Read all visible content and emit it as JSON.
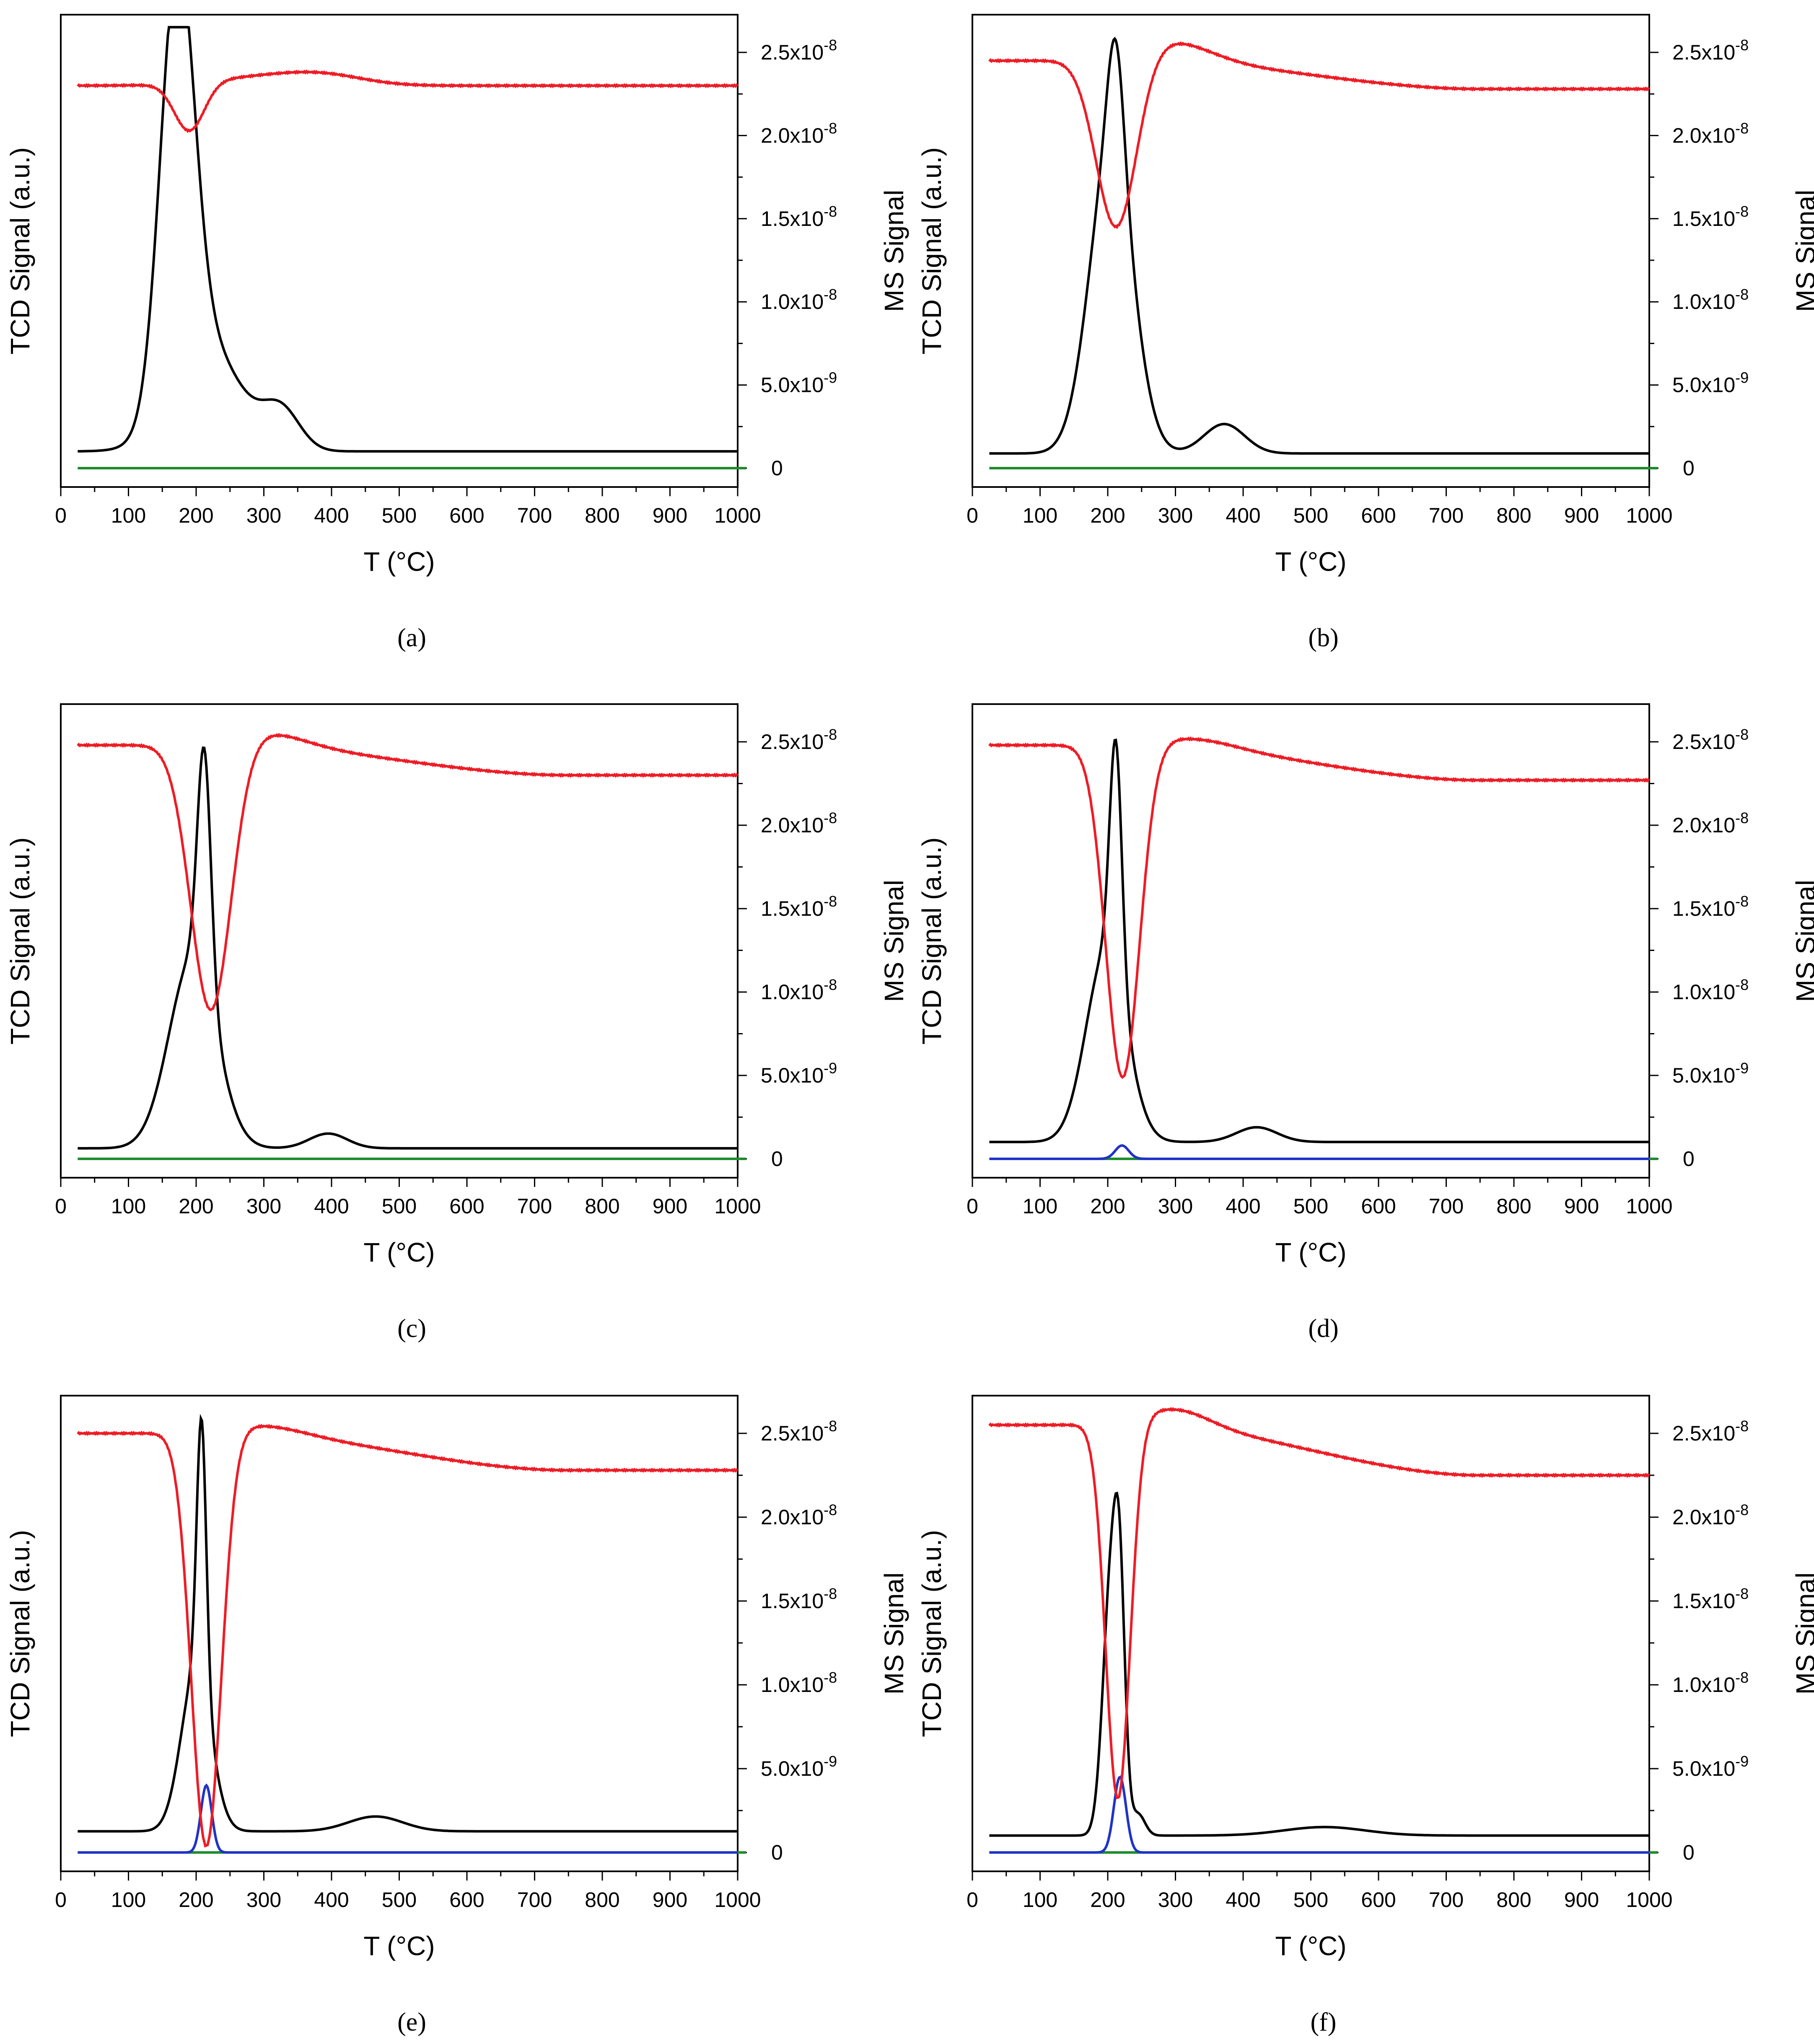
{
  "figure": {
    "description_free": true,
    "panel_labels": [
      "a",
      "b",
      "c",
      "d",
      "e",
      "f"
    ]
  },
  "colors": {
    "tcd": "#000000",
    "ms_red": "#ee1c25",
    "ms_blue": "#1f33c8",
    "ms_green": "#1e8c2e",
    "axis": "#000000"
  },
  "chart_data": [
    {
      "panel": "a",
      "caption": "(a)",
      "type": "line",
      "xlabel": "T (°C)",
      "ylabel_left": "TCD Signal (a.u.)",
      "ylabel_right": "MS Signal",
      "xlim": [
        0,
        1000
      ],
      "x_ticks": [
        0,
        100,
        200,
        300,
        400,
        500,
        600,
        700,
        800,
        900,
        1000
      ],
      "y_right_ticks": [
        "0",
        "5.0x10-9",
        "1.0x10-8",
        "1.5x10-8",
        "2.0x10-8",
        "2.5x10-8"
      ],
      "tcd_peaks": [
        [
          172,
          1.0,
          25
        ],
        [
          215,
          0.25,
          50
        ],
        [
          325,
          0.095,
          28
        ]
      ],
      "tcd_baseline": 0.04,
      "red": {
        "start": 2.3e-08,
        "end": 2.3e-08,
        "dips": [
          [
            190,
            2.9e-09,
            22
          ]
        ],
        "plateau": [
          [
            300,
            5e-10,
            80
          ],
          [
            390,
            5e-10,
            60
          ]
        ]
      },
      "blue_peak": null
    },
    {
      "panel": "b",
      "caption": "(b)",
      "type": "line",
      "xlabel": "T (°C)",
      "ylabel_left": "TCD Signal (a.u.)",
      "ylabel_right": "MS Signal",
      "xlim": [
        0,
        1000
      ],
      "x_ticks": [
        0,
        100,
        200,
        300,
        400,
        500,
        600,
        700,
        800,
        900,
        1000
      ],
      "y_right_ticks": [
        "0",
        "5.0x10-9",
        "1.0x10-8",
        "1.5x10-8",
        "2.0x10-8",
        "2.5x10-8"
      ],
      "tcd_peaks": [
        [
          205,
          0.72,
          32
        ],
        [
          212,
          0.28,
          12
        ],
        [
          372,
          0.07,
          30
        ]
      ],
      "tcd_baseline": 0.035,
      "red": {
        "start": 2.45e-08,
        "end": 2.28e-08,
        "dips": [
          [
            213,
            1.05e-08,
            30
          ]
        ],
        "plateau": [
          [
            290,
            1.2e-09,
            60
          ]
        ]
      },
      "blue_peak": null
    },
    {
      "panel": "c",
      "caption": "(c)",
      "type": "line",
      "xlabel": "T (°C)",
      "ylabel_left": "TCD Signal (a.u.)",
      "ylabel_right": "MS Signal",
      "xlim": [
        0,
        1000
      ],
      "x_ticks": [
        0,
        100,
        200,
        300,
        400,
        500,
        600,
        700,
        800,
        900,
        1000
      ],
      "y_right_ticks": [
        "0",
        "5.0x10-9",
        "1.0x10-8",
        "1.5x10-8",
        "2.0x10-8",
        "2.5x10-8"
      ],
      "tcd_peaks": [
        [
          212,
          0.55,
          10
        ],
        [
          195,
          0.45,
          35
        ],
        [
          395,
          0.035,
          28
        ]
      ],
      "tcd_baseline": 0.025,
      "red": {
        "start": 2.48e-08,
        "end": 2.3e-08,
        "dips": [
          [
            222,
            1.62e-08,
            30
          ]
        ],
        "plateau": [
          [
            300,
            8e-10,
            60
          ]
        ]
      },
      "blue_peak": null
    },
    {
      "panel": "d",
      "caption": "(d)",
      "type": "line",
      "xlabel": "T (°C)",
      "ylabel_left": "TCD Signal (a.u.)",
      "ylabel_right": "MS Signal",
      "xlim": [
        0,
        1000
      ],
      "x_ticks": [
        0,
        100,
        200,
        300,
        400,
        500,
        600,
        700,
        800,
        900,
        1000
      ],
      "y_right_ticks": [
        "0",
        "5.0x10-9",
        "1.0x10-8",
        "1.5x10-8",
        "2.0x10-8",
        "2.5x10-8"
      ],
      "tcd_peaks": [
        [
          212,
          0.55,
          9
        ],
        [
          198,
          0.45,
          30
        ],
        [
          420,
          0.035,
          30
        ]
      ],
      "tcd_baseline": 0.04,
      "red": {
        "start": 2.48e-08,
        "end": 2.27e-08,
        "dips": [
          [
            222,
            2e-08,
            25
          ]
        ],
        "plateau": [
          [
            330,
            5e-10,
            60
          ]
        ]
      },
      "blue_peak": [
        221,
        8e-10,
        10
      ]
    },
    {
      "panel": "e",
      "caption": "(e)",
      "type": "line",
      "xlabel": "T (°C)",
      "ylabel_left": "TCD Signal (a.u.)",
      "ylabel_right": "MS Signal",
      "xlim": [
        0,
        1000
      ],
      "x_ticks": [
        0,
        100,
        200,
        300,
        400,
        500,
        600,
        700,
        800,
        900,
        1000
      ],
      "y_right_ticks": [
        "0",
        "5.0x10-9",
        "1.0x10-8",
        "1.5x10-8",
        "2.0x10-8",
        "2.5x10-8"
      ],
      "tcd_peaks": [
        [
          208,
          0.62,
          7
        ],
        [
          200,
          0.38,
          22
        ],
        [
          465,
          0.035,
          40
        ]
      ],
      "tcd_baseline": 0.05,
      "red": {
        "start": 2.5e-08,
        "end": 2.28e-08,
        "dips": [
          [
            215,
            2.48e-08,
            22
          ]
        ],
        "plateau": [
          [
            300,
            5e-10,
            60
          ]
        ]
      },
      "blue_peak": [
        215,
        4e-09,
        8
      ]
    },
    {
      "panel": "f",
      "caption": "(f)",
      "type": "line",
      "xlabel": "T (°C)",
      "ylabel_left": "TCD Signal (a.u.)",
      "ylabel_right": "MS Signal",
      "xlim": [
        0,
        1000
      ],
      "x_ticks": [
        0,
        100,
        200,
        300,
        400,
        500,
        600,
        700,
        800,
        900,
        1000
      ],
      "y_right_ticks": [
        "0",
        "5.0x10-9",
        "1.0x10-8",
        "1.5x10-8",
        "2.0x10-8",
        "2.5x10-8"
      ],
      "tcd_peaks": [
        [
          205,
          0.6,
          12
        ],
        [
          218,
          0.4,
          8
        ],
        [
          245,
          0.05,
          10
        ],
        [
          520,
          0.02,
          60
        ]
      ],
      "tcd_baseline": 0.04,
      "red": {
        "start": 2.55e-08,
        "end": 2.25e-08,
        "dips": [
          [
            215,
            2.25e-08,
            18
          ]
        ],
        "plateau": [
          [
            300,
            1e-09,
            50
          ]
        ]
      },
      "blue_peak": [
        218,
        4.5e-09,
        9
      ]
    }
  ]
}
